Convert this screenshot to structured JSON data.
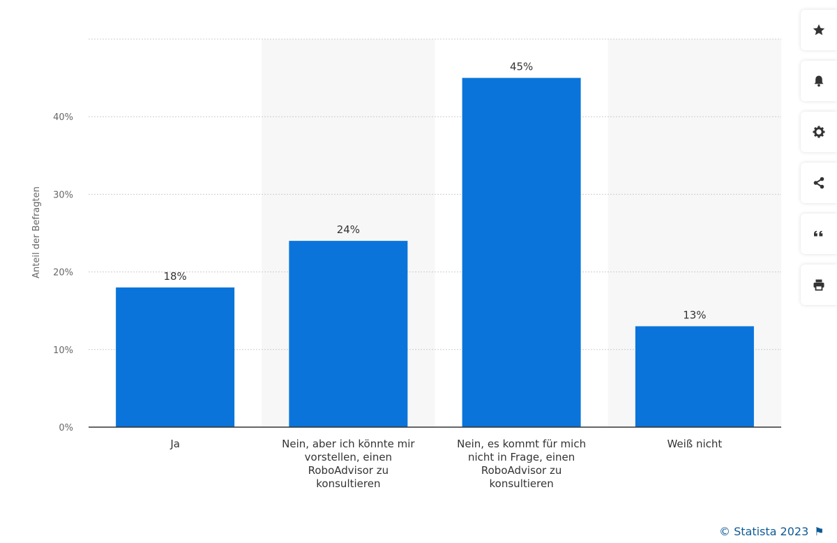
{
  "chart_data": {
    "type": "bar",
    "categories": [
      "Ja",
      "Nein, aber ich könnte mir vorstellen, einen RoboAdvisor zu konsultieren",
      "Nein, es kommt für mich nicht in Frage, einen RoboAdvisor zu konsultieren",
      "Weiß nicht"
    ],
    "category_lines": [
      [
        "Ja"
      ],
      [
        "Nein, aber ich könnte mir",
        "vorstellen, einen",
        "RoboAdvisor zu",
        "konsultieren"
      ],
      [
        "Nein, es kommt für mich",
        "nicht in Frage, einen",
        "RoboAdvisor zu",
        "konsultieren"
      ],
      [
        "Weiß nicht"
      ]
    ],
    "values": [
      18,
      24,
      45,
      13
    ],
    "data_labels": [
      "18%",
      "24%",
      "45%",
      "13%"
    ],
    "ylabel": "Anteil der Befragten",
    "ylim": [
      0,
      50
    ],
    "yticks": [
      0,
      10,
      20,
      30,
      40
    ],
    "ytick_labels": [
      "0%",
      "10%",
      "20%",
      "30%",
      "40%"
    ],
    "grid": true,
    "bar_color": "#0a74db",
    "shaded_band_color": "#f7f7f7"
  },
  "toolbar": {
    "buttons": [
      {
        "icon": "star-icon",
        "name": "favorite-button"
      },
      {
        "icon": "bell-icon",
        "name": "notification-button"
      },
      {
        "icon": "gear-icon",
        "name": "settings-button"
      },
      {
        "icon": "share-icon",
        "name": "share-button"
      },
      {
        "icon": "quote-icon",
        "name": "cite-button"
      },
      {
        "icon": "print-icon",
        "name": "print-button"
      }
    ]
  },
  "credits": {
    "text": "© Statista 2023"
  }
}
